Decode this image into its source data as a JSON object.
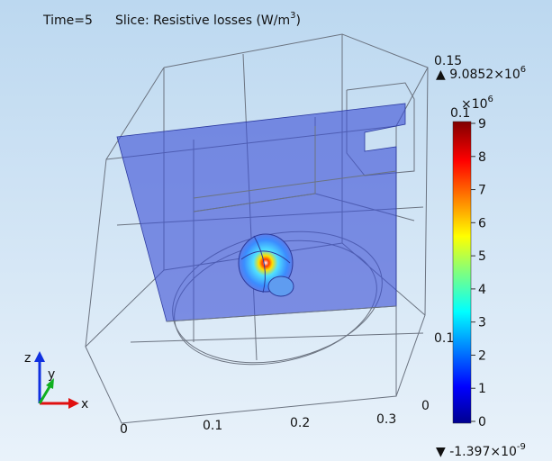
{
  "header": {
    "time": "Time=5",
    "title": "Slice: Resistive losses (W/m",
    "title_sup": "3",
    "title_end": ")"
  },
  "max_label": {
    "base": "▲ 9.0852×10",
    "sup": "6"
  },
  "min_label": {
    "base": "▼ -1.397×10",
    "sup": "-9"
  },
  "colorbar": {
    "exponent_base": "×10",
    "exponent_sup": "6",
    "ticks": [
      0,
      1,
      2,
      3,
      4,
      5,
      6,
      7,
      8,
      9
    ],
    "lim": [
      0,
      9
    ]
  },
  "axes": {
    "x_ticks": [
      "0",
      "0.1",
      "0.2",
      "0.3"
    ],
    "right_ticks": [
      "0.15",
      "0.1",
      "0.1",
      "0"
    ],
    "triad": [
      "z",
      "y",
      "x"
    ]
  }
}
